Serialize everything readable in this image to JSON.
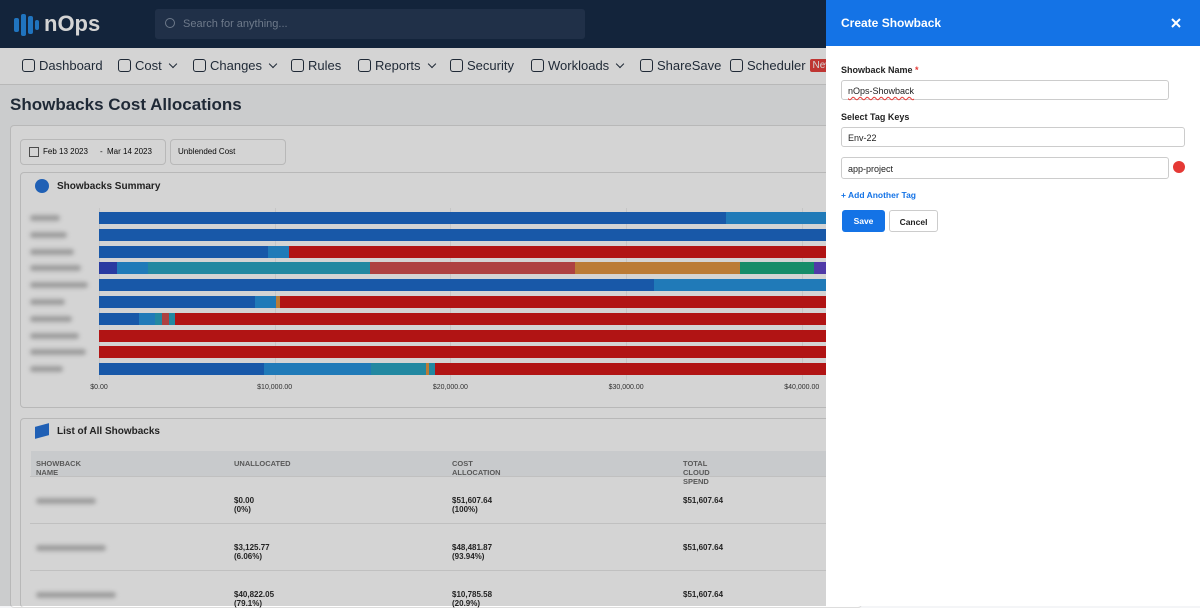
{
  "header": {
    "logo": "nOps",
    "search_placeholder": "Search for anything..."
  },
  "nav": [
    {
      "label": "Dashboard"
    },
    {
      "label": "Cost",
      "dropdown": true
    },
    {
      "label": "Changes",
      "dropdown": true
    },
    {
      "label": "Rules"
    },
    {
      "label": "Reports",
      "dropdown": true
    },
    {
      "label": "Security"
    },
    {
      "label": "Workloads",
      "dropdown": true
    },
    {
      "label": "ShareSave"
    },
    {
      "label": "Scheduler",
      "badge": "New"
    }
  ],
  "page_title": "Showbacks Cost Allocations",
  "filters": {
    "date_start": "Feb 13 2023",
    "date_sep": "-",
    "date_end": "Mar 14 2023",
    "cost_type": "Unblended Cost"
  },
  "summary_chart": {
    "title": "Showbacks Summary",
    "xlim": [
      0,
      60000
    ],
    "xticks": [
      {
        "value": 0,
        "label": "$0.00"
      },
      {
        "value": 10000,
        "label": "$10,000.00"
      },
      {
        "value": 20000,
        "label": "$20,000.00"
      },
      {
        "value": 30000,
        "label": "$30,000.00"
      },
      {
        "value": 40000,
        "label": "$40,000.00"
      }
    ],
    "bars": [
      {
        "label": null,
        "segments": [
          {
            "value": 35700,
            "color": "#1565c8"
          },
          {
            "value": 16000,
            "color": "#1f8fdc"
          }
        ]
      },
      {
        "label": null,
        "segments": [
          {
            "value": 51600,
            "color": "#1565c8"
          }
        ]
      },
      {
        "label": null,
        "segments": [
          {
            "value": 9600,
            "color": "#1565c8"
          },
          {
            "value": 1200,
            "color": "#1f8fdc"
          },
          {
            "value": 40000,
            "color": "#d40f0f"
          }
        ]
      },
      {
        "label": null,
        "segments": [
          {
            "value": 1000,
            "color": "#2a3fc0"
          },
          {
            "value": 1800,
            "color": "#1f8fdc"
          },
          {
            "value": 12600,
            "color": "#21a0c0"
          },
          {
            "value": 11700,
            "color": "#d04848"
          },
          {
            "value": 9400,
            "color": "#e0903a"
          },
          {
            "value": 4200,
            "color": "#12a67a"
          },
          {
            "value": 1000,
            "color": "#5a3fc8"
          }
        ]
      },
      {
        "label": null,
        "segments": [
          {
            "value": 31600,
            "color": "#1565c8"
          },
          {
            "value": 20000,
            "color": "#1f8fdc"
          }
        ]
      },
      {
        "label": null,
        "segments": [
          {
            "value": 8900,
            "color": "#1565c8"
          },
          {
            "value": 1200,
            "color": "#1f8fdc"
          },
          {
            "value": 200,
            "color": "#e0903a"
          },
          {
            "value": 40000,
            "color": "#d40f0f"
          }
        ]
      },
      {
        "label": null,
        "segments": [
          {
            "value": 2300,
            "color": "#1565c8"
          },
          {
            "value": 900,
            "color": "#1f8fdc"
          },
          {
            "value": 400,
            "color": "#21a0c0"
          },
          {
            "value": 400,
            "color": "#d04848"
          },
          {
            "value": 300,
            "color": "#21a0c0"
          },
          {
            "value": 40000,
            "color": "#d40f0f"
          }
        ]
      },
      {
        "label": null,
        "segments": [
          {
            "value": 51600,
            "color": "#d40f0f"
          }
        ]
      },
      {
        "label": null,
        "segments": [
          {
            "value": 51600,
            "color": "#d40f0f"
          }
        ]
      },
      {
        "label": null,
        "segments": [
          {
            "value": 9400,
            "color": "#1565c8"
          },
          {
            "value": 6100,
            "color": "#1f8fdc"
          },
          {
            "value": 3100,
            "color": "#21a0c0"
          },
          {
            "value": 200,
            "color": "#e0903a"
          },
          {
            "value": 300,
            "color": "#21a0c0"
          },
          {
            "value": 35000,
            "color": "#d40f0f"
          }
        ]
      }
    ]
  },
  "table": {
    "title": "List of All Showbacks",
    "columns": [
      "SHOWBACK NAME",
      "UNALLOCATED",
      "COST ALLOCATION",
      "TOTAL CLOUD SPEND"
    ],
    "rows": [
      [
        null,
        "$0.00 (0%)",
        "$51,607.64 (100%)",
        "$51,607.64"
      ],
      [
        null,
        "$3,125.77 (6.06%)",
        "$48,481.87 (93.94%)",
        "$51,607.64"
      ],
      [
        null,
        "$40,822.05 (79.1%)",
        "$10,785.58 (20.9%)",
        "$51,607.64"
      ]
    ]
  },
  "panel": {
    "title": "Create Showback",
    "name_label": "Showback Name",
    "required_mark": "*",
    "name_value": "nOps-Showback",
    "tags_label": "Select Tag Keys",
    "tags": [
      "Env-22",
      "app-project"
    ],
    "add_tag": "+ Add Another Tag",
    "save": "Save",
    "cancel": "Cancel"
  }
}
